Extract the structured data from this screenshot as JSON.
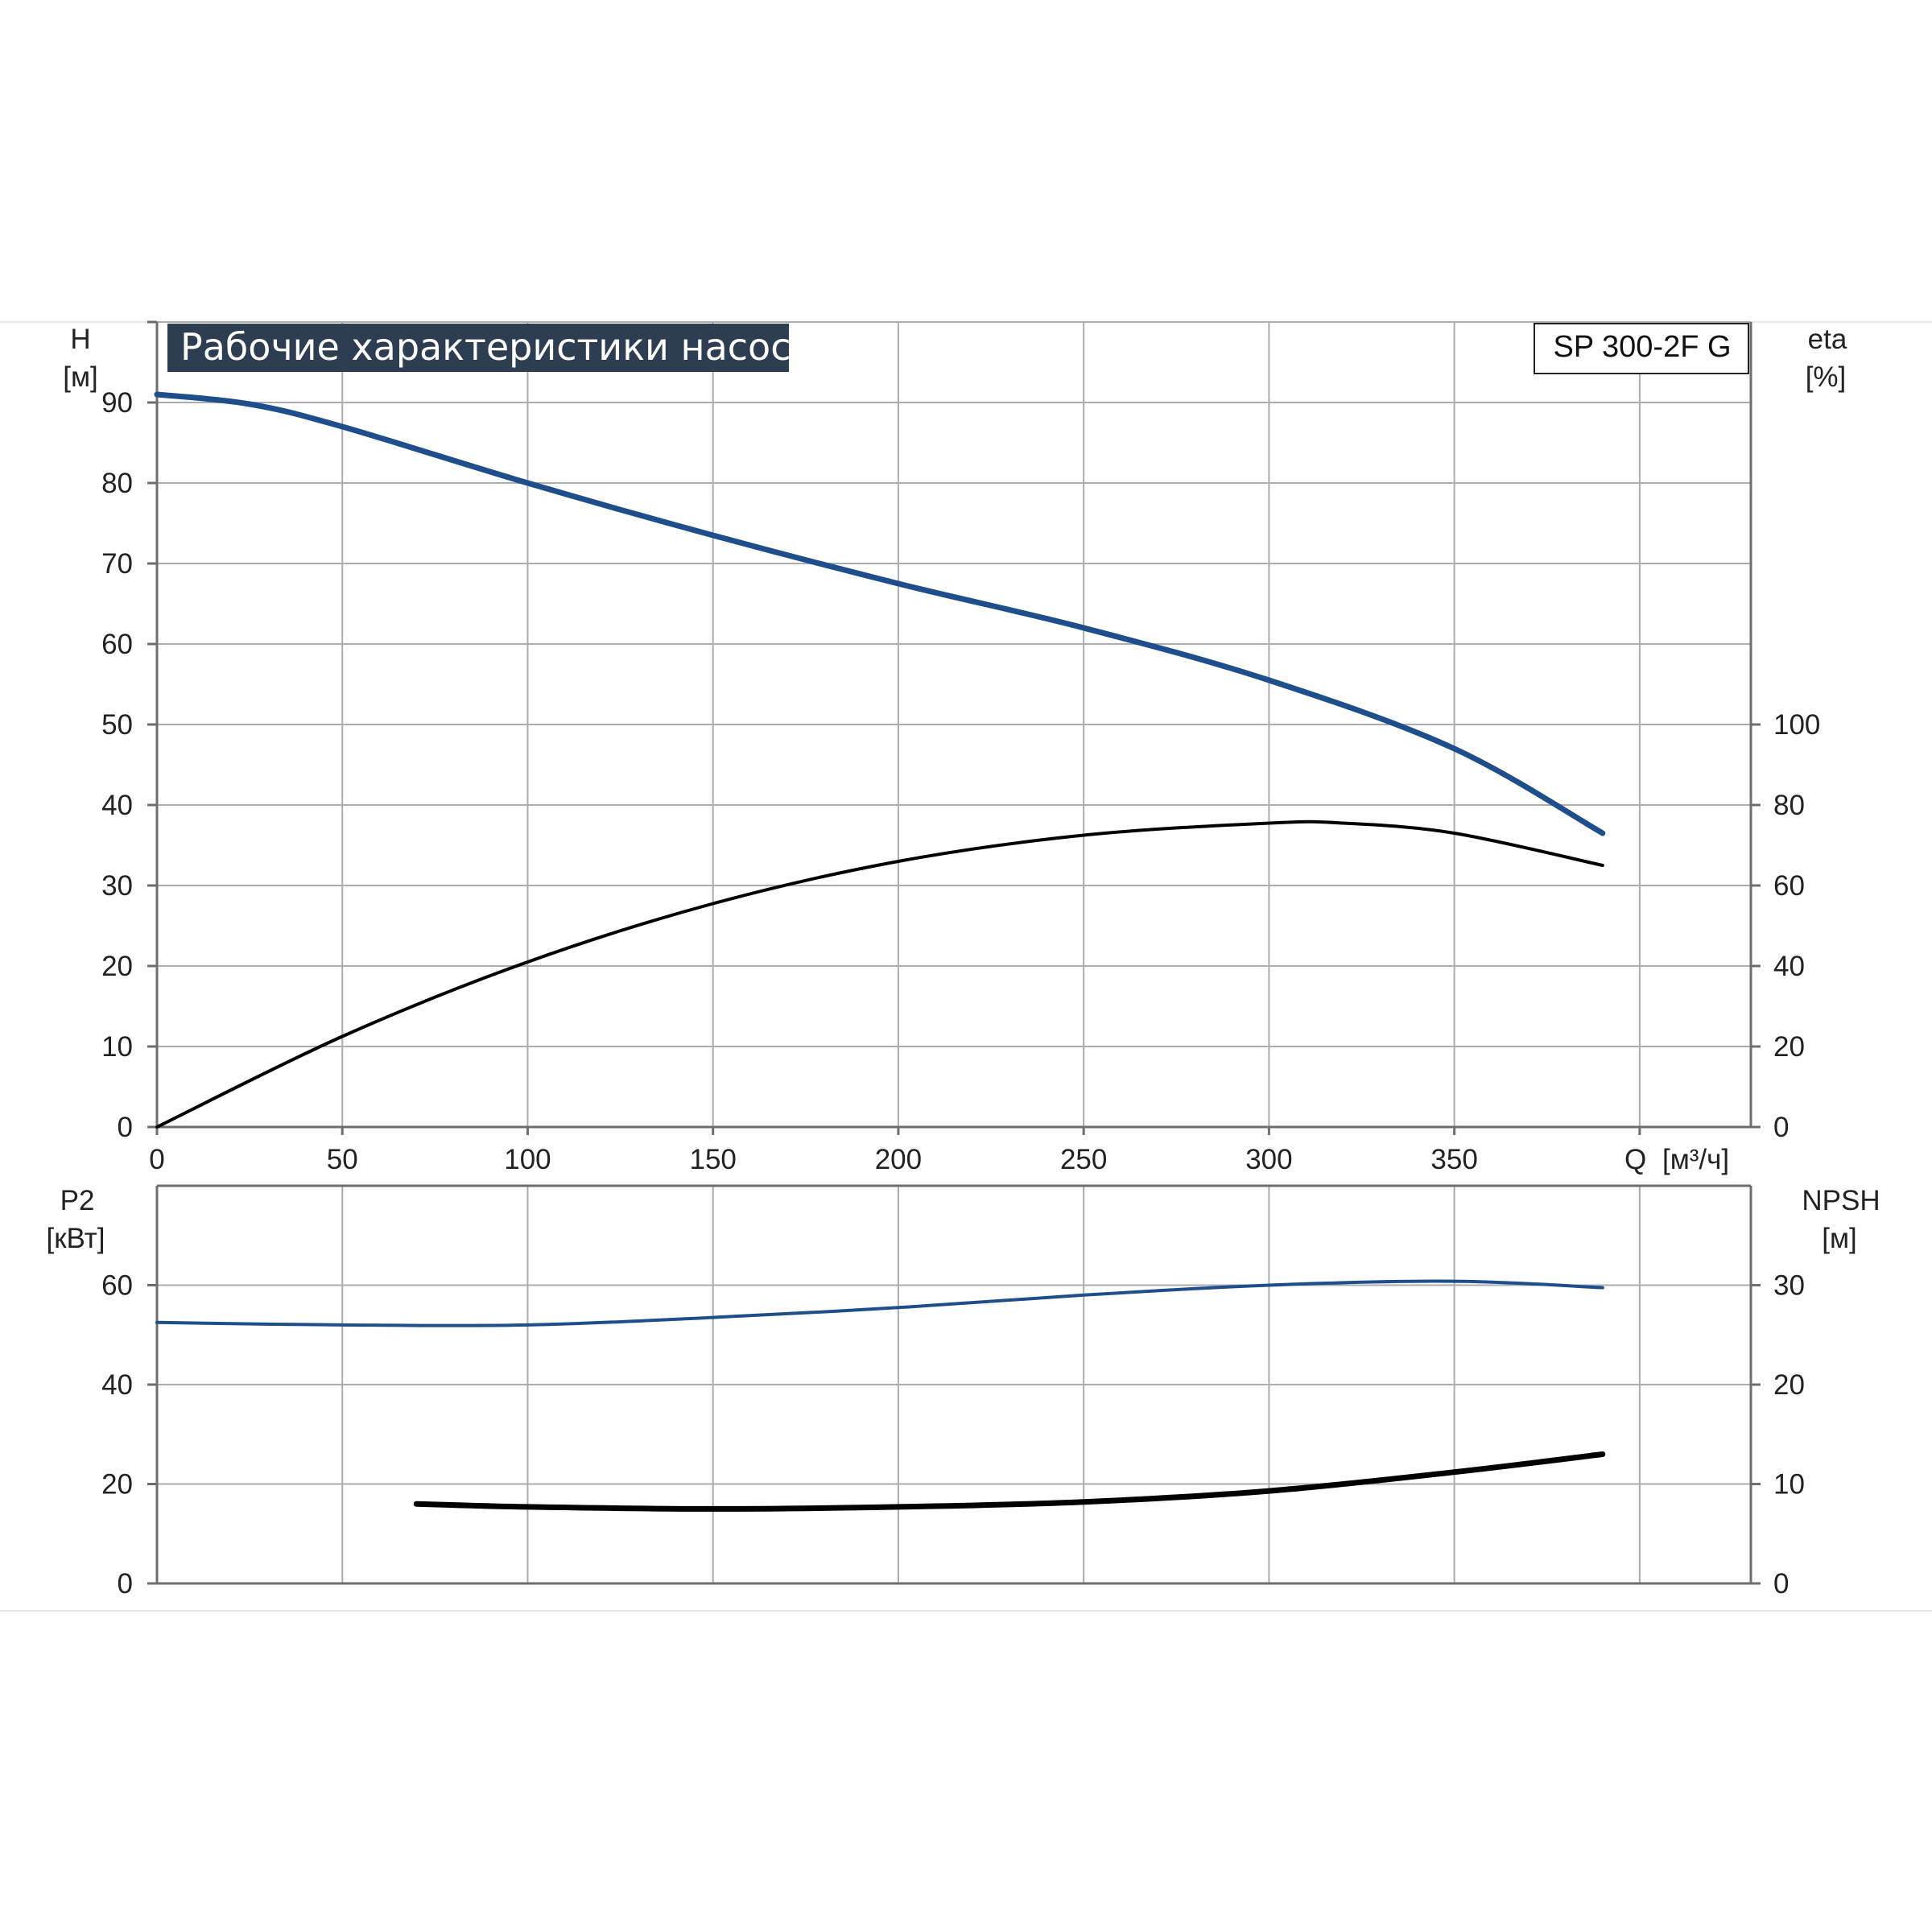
{
  "chart_data": [
    {
      "type": "line",
      "title": "Рабочие характеристики насоса",
      "model": "SP 300-2F G",
      "xlabel": "Q [м³/ч]",
      "xlabel_q": "Q",
      "xlabel_unit": "[м³/ч]",
      "ylabel_left": "H",
      "ylabel_left_unit": "[м]",
      "ylabel_right": "eta",
      "ylabel_right_unit": "[%]",
      "xlim": [
        0,
        430
      ],
      "ylim_left": [
        0,
        100
      ],
      "ylim_right": [
        0,
        200
      ],
      "grid": true,
      "x_ticks": [
        "0",
        "50",
        "100",
        "150",
        "200",
        "250",
        "300",
        "350"
      ],
      "y_ticks_left": [
        "0",
        "10",
        "20",
        "30",
        "40",
        "50",
        "60",
        "70",
        "80",
        "90"
      ],
      "y_ticks_right": [
        "0",
        "20",
        "40",
        "60",
        "80",
        "100"
      ],
      "series": [
        {
          "axis": "left",
          "color": "#1f4e8c",
          "x": [
            0,
            25,
            50,
            100,
            150,
            200,
            250,
            300,
            350,
            390
          ],
          "y": [
            91,
            89.8,
            87,
            80,
            73.5,
            67.5,
            62,
            55.5,
            47,
            36.5
          ]
        },
        {
          "axis": "right",
          "color": "#000000",
          "x": [
            0,
            50,
            100,
            150,
            200,
            250,
            300,
            320,
            350,
            390
          ],
          "y": [
            0,
            22.5,
            41,
            55.5,
            66,
            72.5,
            75.5,
            75.5,
            73,
            65
          ]
        }
      ]
    },
    {
      "type": "line",
      "ylabel_left": "P2",
      "ylabel_left_unit": "[кВт]",
      "ylabel_right": "NPSH",
      "ylabel_right_unit": "[м]",
      "xlim": [
        0,
        430
      ],
      "ylim_left": [
        0,
        80
      ],
      "ylim_right": [
        0,
        40
      ],
      "grid": true,
      "y_ticks_left": [
        "0",
        "20",
        "40",
        "60"
      ],
      "y_ticks_right": [
        "0",
        "10",
        "20",
        "30"
      ],
      "series": [
        {
          "axis": "left",
          "color": "#1f4e8c",
          "x": [
            0,
            50,
            100,
            150,
            200,
            250,
            300,
            350,
            390
          ],
          "y": [
            52.5,
            52,
            52,
            53.5,
            55.5,
            58,
            60,
            60.8,
            59.5
          ]
        },
        {
          "axis": "right",
          "color": "#000000",
          "x": [
            70,
            100,
            150,
            200,
            250,
            300,
            350,
            390
          ],
          "y": [
            8,
            7.7,
            7.5,
            7.7,
            8.2,
            9.3,
            11.2,
            13
          ]
        }
      ]
    }
  ]
}
